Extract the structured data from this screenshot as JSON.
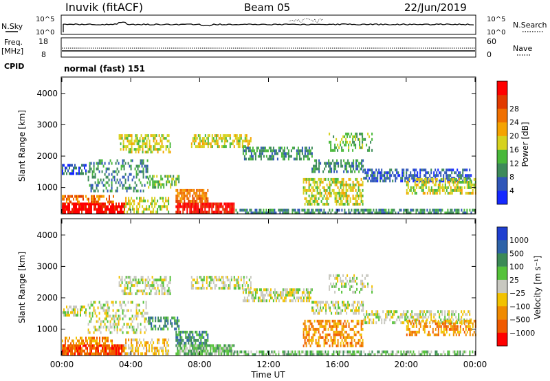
{
  "header": {
    "station": "Inuvik (fitACF)",
    "beam": "Beam 05",
    "date": "22/Jun/2019",
    "mode": "normal (fast) 151"
  },
  "status_panels": {
    "nsky": {
      "label": "N.Sky",
      "ticks": [
        "10^5",
        "10^0"
      ]
    },
    "nsearch": {
      "label": "N.Search",
      "ticks": [
        "10^5",
        "10^0"
      ]
    },
    "freq": {
      "label_line1": "Freq.",
      "label_line2": "[MHz]",
      "ticks": [
        "18",
        "8"
      ]
    },
    "nave": {
      "label": "Nave",
      "ticks": [
        "60",
        "0"
      ]
    },
    "cpid": {
      "label": "CPID"
    }
  },
  "chart_data": [
    {
      "type": "heatmap",
      "name": "power",
      "ylabel": "Slant Range [km]",
      "yticks": [
        "1000",
        "2000",
        "3000",
        "4000"
      ],
      "ylim": [
        180,
        4500
      ],
      "xlim_hours": [
        0,
        24
      ],
      "xtick_labels": [
        "00:00",
        "04:00",
        "08:00",
        "12:00",
        "16:00",
        "20:00",
        "00:00"
      ],
      "colorbar": {
        "label": "Power [dB]",
        "ticks": [
          "4",
          "8",
          "12",
          "16",
          "20",
          "24",
          "28"
        ],
        "colors": [
          "#1428ff",
          "#2f56b8",
          "#3d8a5a",
          "#49b83a",
          "#d6d21e",
          "#f5a300",
          "#f07000",
          "#e23a00",
          "#ff0000"
        ]
      }
    },
    {
      "type": "heatmap",
      "name": "velocity",
      "ylabel": "Slant Range [km]",
      "yticks": [
        "1000",
        "2000",
        "3000",
        "4000"
      ],
      "ylim": [
        180,
        4500
      ],
      "xlim_hours": [
        0,
        24
      ],
      "xtick_labels": [
        "00:00",
        "04:00",
        "08:00",
        "12:00",
        "16:00",
        "20:00",
        "00:00"
      ],
      "xlabel": "Time UT",
      "colorbar": {
        "label": "Velocity [m s⁻¹]",
        "ticks": [
          "1000",
          "500",
          "100",
          "25",
          "−25",
          "−100",
          "−500",
          "−1000"
        ],
        "colors": [
          "#1f3fd0",
          "#2e63a8",
          "#3b8a56",
          "#55c23a",
          "#c8c8c0",
          "#f2c200",
          "#f08a00",
          "#f05a00",
          "#ff0000"
        ]
      }
    }
  ]
}
